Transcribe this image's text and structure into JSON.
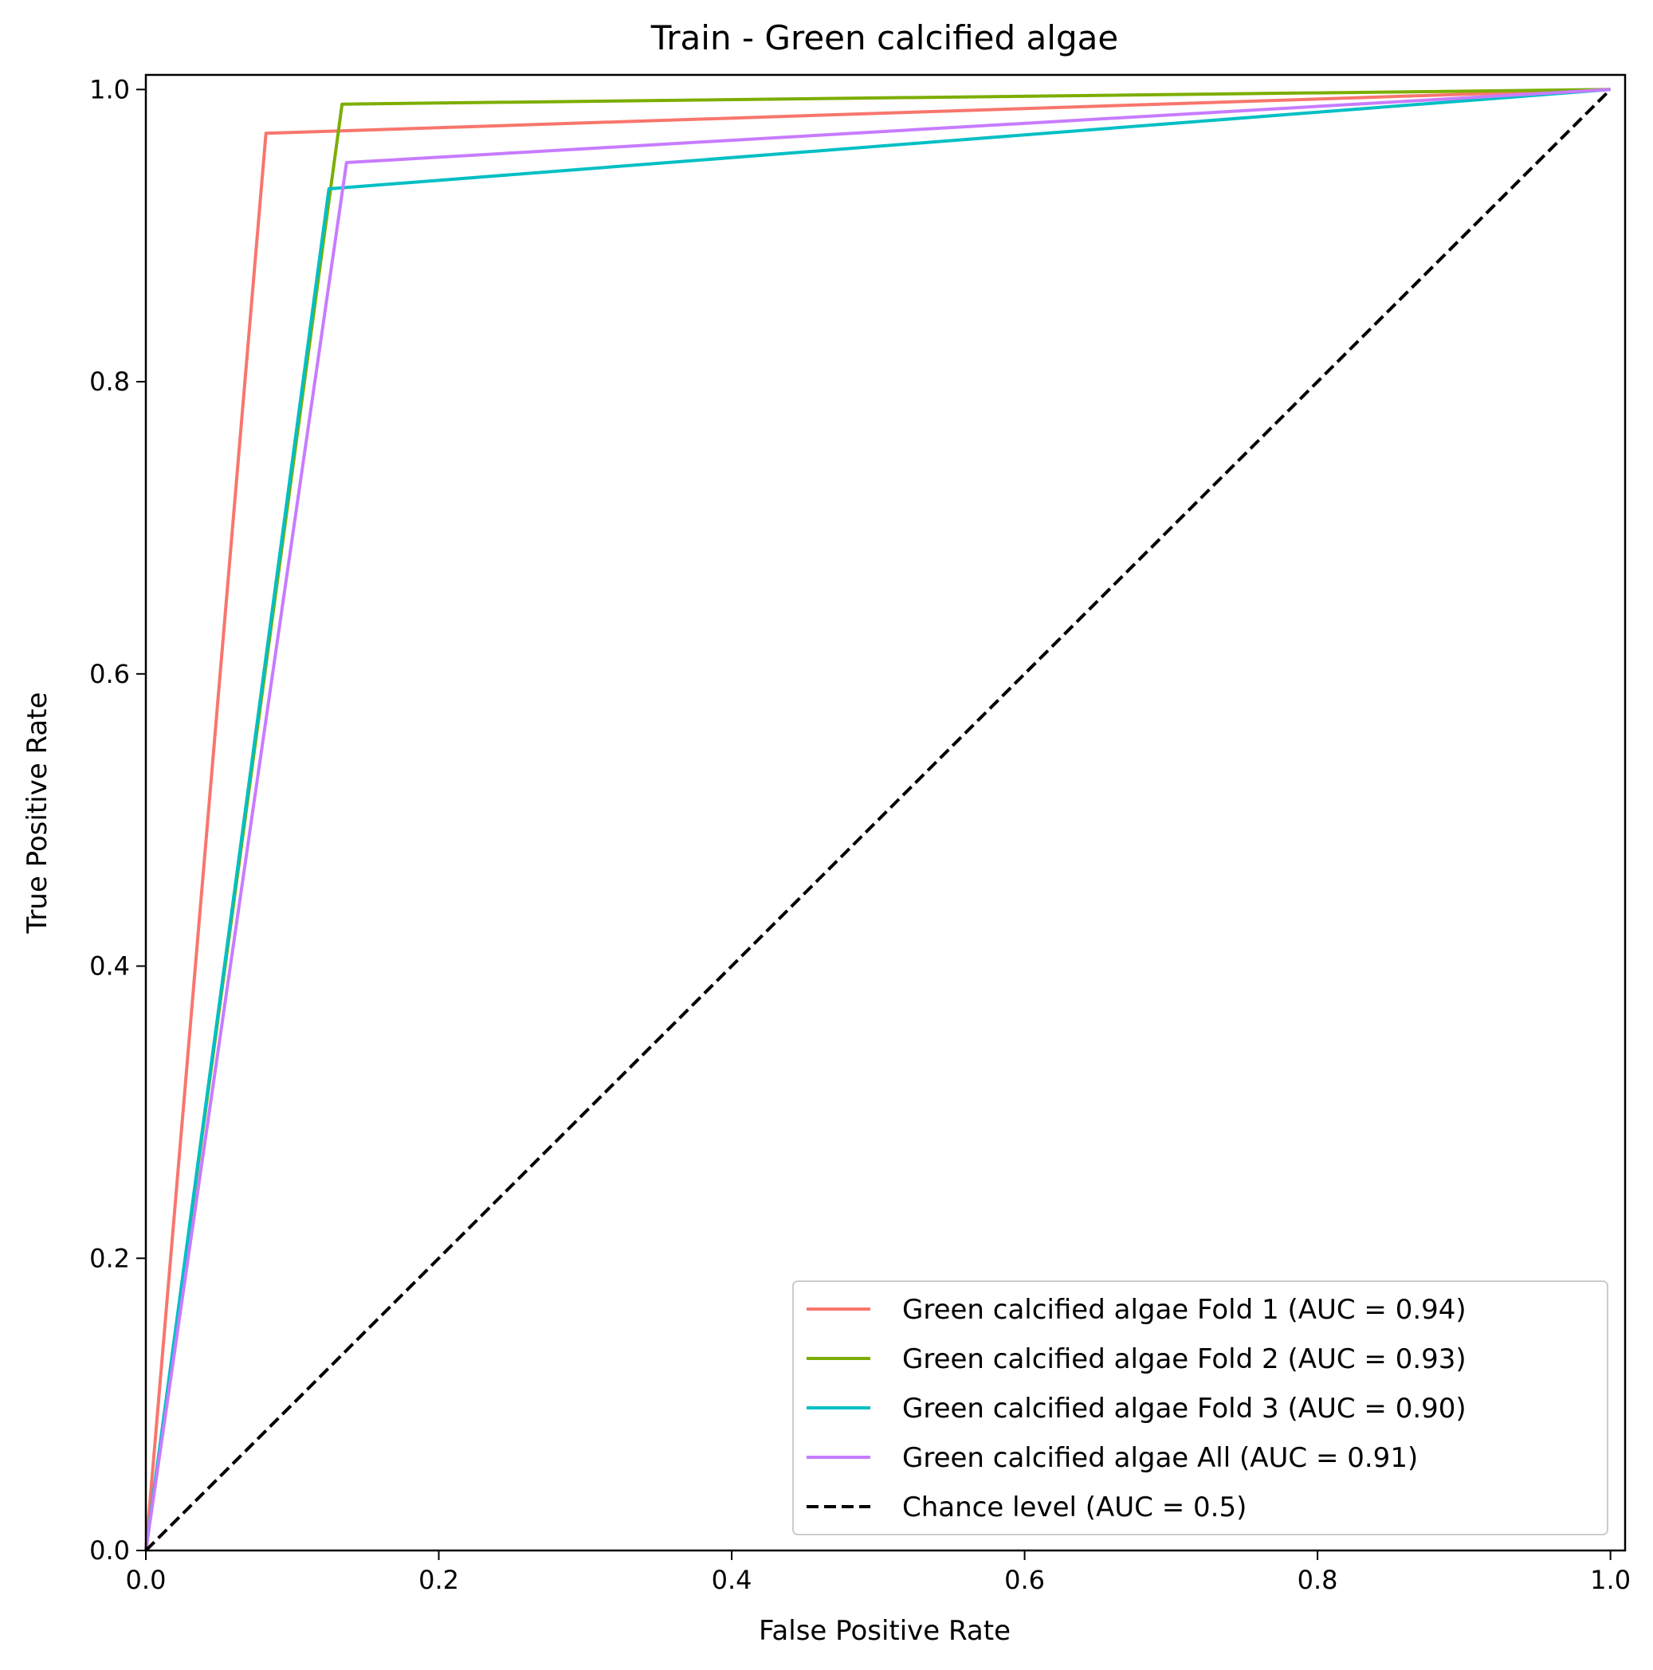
{
  "chart_data": {
    "type": "line",
    "title": "Train - Green calcified algae",
    "xlabel": "False Positive Rate",
    "ylabel": "True Positive Rate",
    "xlim": [
      0.0,
      1.01
    ],
    "ylim": [
      0.0,
      1.01
    ],
    "xticks": [
      0.0,
      0.2,
      0.4,
      0.6,
      0.8,
      1.0
    ],
    "yticks": [
      0.0,
      0.2,
      0.4,
      0.6,
      0.8,
      1.0
    ],
    "xtick_labels": [
      "0.0",
      "0.2",
      "0.4",
      "0.6",
      "0.8",
      "1.0"
    ],
    "ytick_labels": [
      "0.0",
      "0.2",
      "0.4",
      "0.6",
      "0.8",
      "1.0"
    ],
    "grid": false,
    "legend_position": "lower-right",
    "series": [
      {
        "name": "Green calcified algae Fold 1 (AUC = 0.94)",
        "color": "#f8766d",
        "dash": false,
        "x": [
          0.0,
          0.082,
          1.0
        ],
        "y": [
          0.0,
          0.97,
          1.0
        ]
      },
      {
        "name": "Green calcified algae Fold 2 (AUC = 0.93)",
        "color": "#7cae00",
        "dash": false,
        "x": [
          0.0,
          0.134,
          1.0
        ],
        "y": [
          0.0,
          0.99,
          1.0
        ]
      },
      {
        "name": "Green calcified algae Fold 3 (AUC = 0.90)",
        "color": "#00bfc4",
        "dash": false,
        "x": [
          0.0,
          0.125,
          1.0
        ],
        "y": [
          0.0,
          0.932,
          1.0
        ]
      },
      {
        "name": "Green calcified algae All (AUC = 0.91)",
        "color": "#c77cff",
        "dash": false,
        "x": [
          0.0,
          0.137,
          1.0
        ],
        "y": [
          0.0,
          0.95,
          1.0
        ]
      },
      {
        "name": "Chance level (AUC = 0.5)",
        "color": "#000000",
        "dash": true,
        "x": [
          0.0,
          1.0
        ],
        "y": [
          0.0,
          1.0
        ]
      }
    ]
  }
}
